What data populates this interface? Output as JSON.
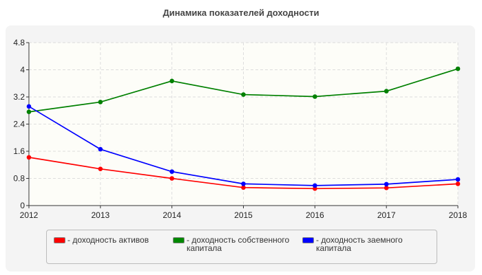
{
  "chart_data": {
    "type": "line",
    "title": "Динамика показателей доходности",
    "categories": [
      "2012",
      "2013",
      "2014",
      "2015",
      "2016",
      "2017",
      "2018"
    ],
    "ylim": [
      0,
      4.8
    ],
    "yticks": [
      "0",
      "0.8",
      "1.6",
      "2.4",
      "3.2",
      "4",
      "4.8"
    ],
    "grid": true,
    "legend": "bottom",
    "series": [
      {
        "name": "- доходность активов",
        "color": "#ff0000",
        "values": [
          1.42,
          1.08,
          0.8,
          0.53,
          0.5,
          0.52,
          0.64
        ]
      },
      {
        "name": "- доходность собственного капитала",
        "color": "#008000",
        "values": [
          2.76,
          3.05,
          3.67,
          3.27,
          3.21,
          3.37,
          4.03
        ]
      },
      {
        "name": "- доходность заемного капитала",
        "color": "#0000ff",
        "values": [
          2.92,
          1.66,
          1.0,
          0.64,
          0.59,
          0.63,
          0.77
        ]
      }
    ]
  }
}
